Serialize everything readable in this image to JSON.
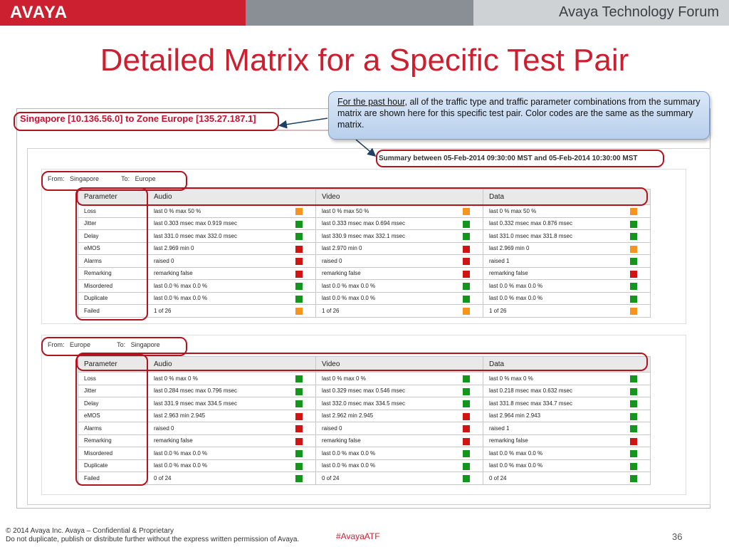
{
  "header": {
    "logo": "AVAYA",
    "forum": "Avaya Technology Forum",
    "colors": {
      "brand_red": "#cc1f2f",
      "mid_gray": "#8a8f95",
      "light_gray": "#cfd2d5"
    }
  },
  "title": "Detailed Matrix for a Specific Test Pair",
  "callout": {
    "underlined": "For the past hour",
    "rest": ", all of the traffic type and traffic parameter combinations from the summary matrix are shown here for this specific test pair. Color codes are the same as the summary matrix."
  },
  "screenshot": {
    "header": "Singapore [10.136.56.0] to Zone Europe [135.27.187.1]",
    "summary": "Summary between 05-Feb-2014 09:30:00 MST and 05-Feb-2014 10:30:00 MST"
  },
  "status_colors": {
    "green": "#12961b",
    "orange": "#f7941d",
    "red": "#d01414"
  },
  "matrices": [
    {
      "from_label": "From:",
      "from": "Singapore",
      "to_label": "To:",
      "to": "Europe",
      "headers": [
        "Parameter",
        "Audio",
        "Video",
        "Data"
      ],
      "rows": [
        {
          "param": "Loss",
          "cells": [
            {
              "text": "last 0 % max 50 %",
              "status": "orange"
            },
            {
              "text": "last 0 % max 50 %",
              "status": "orange"
            },
            {
              "text": "last 0 % max 50 %",
              "status": "orange"
            }
          ]
        },
        {
          "param": "Jitter",
          "cells": [
            {
              "text": "last 0.303 msec max 0.919 msec",
              "status": "green"
            },
            {
              "text": "last 0.333 msec max 0.694 msec",
              "status": "green"
            },
            {
              "text": "last 0.332 msec max 0.876 msec",
              "status": "green"
            }
          ]
        },
        {
          "param": "Delay",
          "cells": [
            {
              "text": "last 331.0 msec max 332.0 msec",
              "status": "green"
            },
            {
              "text": "last 330.9 msec max 332.1 msec",
              "status": "green"
            },
            {
              "text": "last 331.0 msec max 331.8 msec",
              "status": "green"
            }
          ]
        },
        {
          "param": "eMOS",
          "cells": [
            {
              "text": "last 2.969 min 0",
              "status": "red"
            },
            {
              "text": "last 2.970 min 0",
              "status": "red"
            },
            {
              "text": "last 2.969 min 0",
              "status": "orange"
            }
          ]
        },
        {
          "param": "Alarms",
          "cells": [
            {
              "text": "raised 0",
              "status": "red"
            },
            {
              "text": "raised 0",
              "status": "red"
            },
            {
              "text": "raised 1",
              "status": "green"
            }
          ]
        },
        {
          "param": "Remarking",
          "cells": [
            {
              "text": "remarking false",
              "status": "red"
            },
            {
              "text": "remarking false",
              "status": "red"
            },
            {
              "text": "remarking false",
              "status": "red"
            }
          ]
        },
        {
          "param": "Misordered",
          "cells": [
            {
              "text": "last 0.0 % max 0.0 %",
              "status": "green"
            },
            {
              "text": "last 0.0 % max 0.0 %",
              "status": "green"
            },
            {
              "text": "last 0.0 % max 0.0 %",
              "status": "green"
            }
          ]
        },
        {
          "param": "Duplicate",
          "cells": [
            {
              "text": "last 0.0 % max 0.0 %",
              "status": "green"
            },
            {
              "text": "last 0.0 % max 0.0 %",
              "status": "green"
            },
            {
              "text": "last 0.0 % max 0.0 %",
              "status": "green"
            }
          ]
        },
        {
          "param": "Failed",
          "cells": [
            {
              "text": "1 of 26",
              "status": "orange"
            },
            {
              "text": "1 of 26",
              "status": "orange"
            },
            {
              "text": "1 of 26",
              "status": "orange"
            }
          ]
        }
      ]
    },
    {
      "from_label": "From:",
      "from": "Europe",
      "to_label": "To:",
      "to": "Singapore",
      "headers": [
        "Parameter",
        "Audio",
        "Video",
        "Data"
      ],
      "rows": [
        {
          "param": "Loss",
          "cells": [
            {
              "text": "last 0 % max 0 %",
              "status": "green"
            },
            {
              "text": "last 0 % max 0 %",
              "status": "green"
            },
            {
              "text": "last 0 % max 0 %",
              "status": "green"
            }
          ]
        },
        {
          "param": "Jitter",
          "cells": [
            {
              "text": "last 0.284 msec max 0.796 msec",
              "status": "green"
            },
            {
              "text": "last 0.329 msec max 0.546 msec",
              "status": "green"
            },
            {
              "text": "last 0.218 msec max 0.632 msec",
              "status": "green"
            }
          ]
        },
        {
          "param": "Delay",
          "cells": [
            {
              "text": "last 331.9 msec max 334.5 msec",
              "status": "green"
            },
            {
              "text": "last 332.0 msec max 334.5 msec",
              "status": "green"
            },
            {
              "text": "last 331.8 msec max 334.7 msec",
              "status": "green"
            }
          ]
        },
        {
          "param": "eMOS",
          "cells": [
            {
              "text": "last 2.963 min 2.945",
              "status": "red"
            },
            {
              "text": "last 2.962 min 2.945",
              "status": "red"
            },
            {
              "text": "last 2.964 min 2.943",
              "status": "green"
            }
          ]
        },
        {
          "param": "Alarms",
          "cells": [
            {
              "text": "raised 0",
              "status": "red"
            },
            {
              "text": "raised 0",
              "status": "red"
            },
            {
              "text": "raised 1",
              "status": "green"
            }
          ]
        },
        {
          "param": "Remarking",
          "cells": [
            {
              "text": "remarking false",
              "status": "red"
            },
            {
              "text": "remarking false",
              "status": "red"
            },
            {
              "text": "remarking false",
              "status": "red"
            }
          ]
        },
        {
          "param": "Misordered",
          "cells": [
            {
              "text": "last 0.0 % max 0.0 %",
              "status": "green"
            },
            {
              "text": "last 0.0 % max 0.0 %",
              "status": "green"
            },
            {
              "text": "last 0.0 % max 0.0 %",
              "status": "green"
            }
          ]
        },
        {
          "param": "Duplicate",
          "cells": [
            {
              "text": "last 0.0 % max 0.0 %",
              "status": "green"
            },
            {
              "text": "last 0.0 % max 0.0 %",
              "status": "green"
            },
            {
              "text": "last 0.0 % max 0.0 %",
              "status": "green"
            }
          ]
        },
        {
          "param": "Failed",
          "cells": [
            {
              "text": "0 of 24",
              "status": "green"
            },
            {
              "text": "0 of 24",
              "status": "green"
            },
            {
              "text": "0 of 24",
              "status": "green"
            }
          ]
        }
      ]
    }
  ],
  "footer": {
    "copyright": "© 2014 Avaya Inc. Avaya – Confidential & Proprietary",
    "notice": "Do not duplicate, publish or distribute further without the express written permission of Avaya.",
    "hashtag": "#AvayaATF",
    "page": "36"
  }
}
